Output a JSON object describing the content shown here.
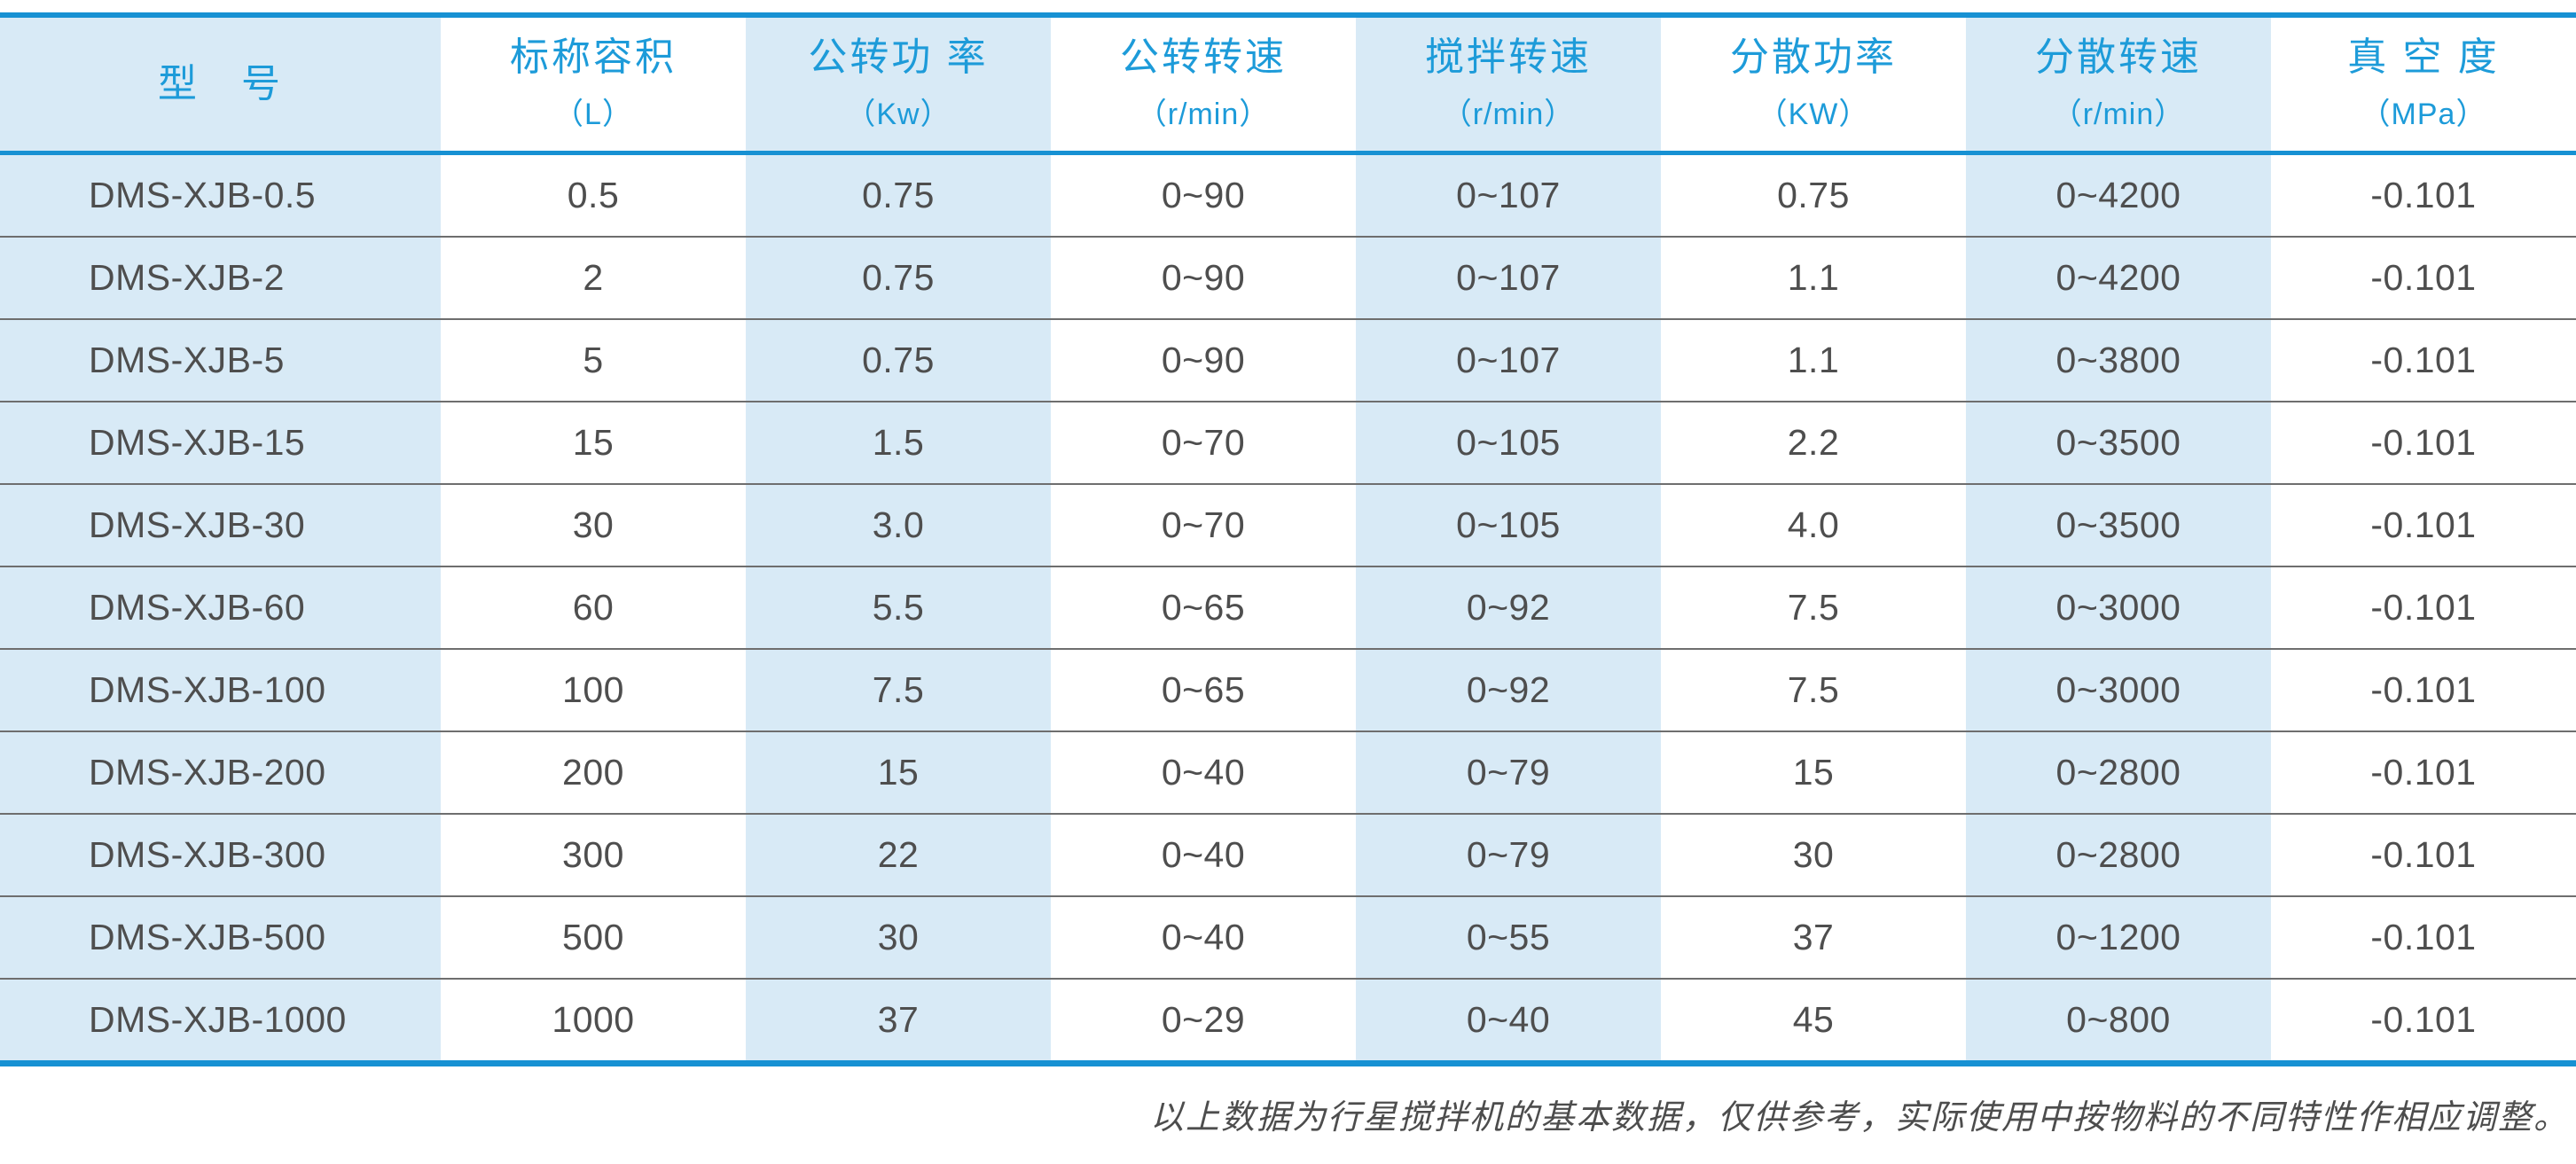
{
  "chart_data": {
    "type": "table",
    "columns": [
      {
        "label": "型　号",
        "unit": ""
      },
      {
        "label": "标称容积",
        "unit": "（L）"
      },
      {
        "label": "公转功 率",
        "unit": "（Kw）"
      },
      {
        "label": "公转转速",
        "unit": "（r/min）"
      },
      {
        "label": "搅拌转速",
        "unit": "（r/min）"
      },
      {
        "label": "分散功率",
        "unit": "（KW）"
      },
      {
        "label": "分散转速",
        "unit": "（r/min）"
      },
      {
        "label": "真 空 度",
        "unit": "（MPa）"
      }
    ],
    "rows": [
      [
        "DMS-XJB-0.5",
        "0.5",
        "0.75",
        "0~90",
        "0~107",
        "0.75",
        "0~4200",
        "-0.101"
      ],
      [
        "DMS-XJB-2",
        "2",
        "0.75",
        "0~90",
        "0~107",
        "1.1",
        "0~4200",
        "-0.101"
      ],
      [
        "DMS-XJB-5",
        "5",
        "0.75",
        "0~90",
        "0~107",
        "1.1",
        "0~3800",
        "-0.101"
      ],
      [
        "DMS-XJB-15",
        "15",
        "1.5",
        "0~70",
        "0~105",
        "2.2",
        "0~3500",
        "-0.101"
      ],
      [
        "DMS-XJB-30",
        "30",
        "3.0",
        "0~70",
        "0~105",
        "4.0",
        "0~3500",
        "-0.101"
      ],
      [
        "DMS-XJB-60",
        "60",
        "5.5",
        "0~65",
        "0~92",
        "7.5",
        "0~3000",
        "-0.101"
      ],
      [
        "DMS-XJB-100",
        "100",
        "7.5",
        "0~65",
        "0~92",
        "7.5",
        "0~3000",
        "-0.101"
      ],
      [
        "DMS-XJB-200",
        "200",
        "15",
        "0~40",
        "0~79",
        "15",
        "0~2800",
        "-0.101"
      ],
      [
        "DMS-XJB-300",
        "300",
        "22",
        "0~40",
        "0~79",
        "30",
        "0~2800",
        "-0.101"
      ],
      [
        "DMS-XJB-500",
        "500",
        "30",
        "0~40",
        "0~55",
        "37",
        "0~1200",
        "-0.101"
      ],
      [
        "DMS-XJB-1000",
        "1000",
        "37",
        "0~29",
        "0~40",
        "45",
        "0~800",
        "-0.101"
      ]
    ]
  },
  "footer": {
    "note": "以上数据为行星搅拌机的基本数据，仅供参考，实际使用中按物料的不同特性作相应调整。"
  },
  "colors": {
    "accent_blue": "#1791d3",
    "header_text_blue": "#1d9bd9",
    "stripe_light_blue": "#d8eaf6",
    "body_text": "#4e4e4e",
    "row_separator": "#6e6e6e"
  }
}
